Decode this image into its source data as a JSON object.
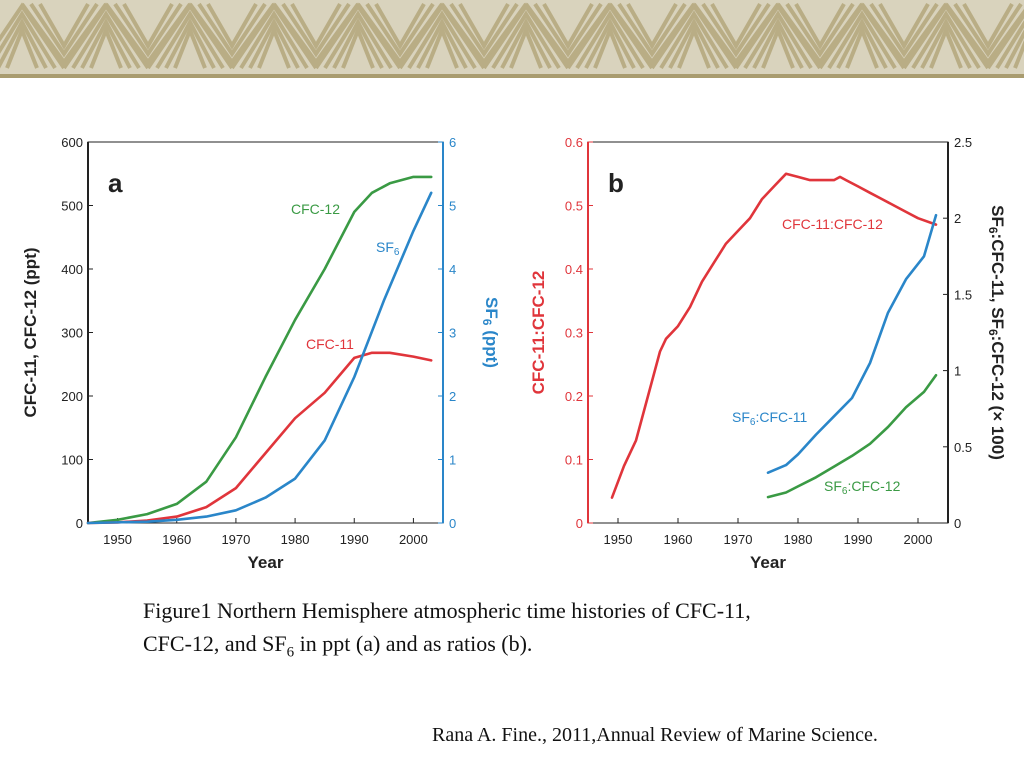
{
  "banner": {
    "pattern_icon": "triangle-meander-icon",
    "colors": {
      "background": "#d9d3bd",
      "line": "#b9ad85",
      "bottom_line": "#a99c6f"
    }
  },
  "colors": {
    "cfc11": "#e0353b",
    "cfc12": "#3a9a44",
    "sf6": "#2a86c9",
    "axis": "#222222"
  },
  "caption": {
    "line1": "Figure1 Northern Hemisphere atmospheric time histories of CFC-11,",
    "line2_a": "CFC-12, and SF",
    "line2_sub": "6",
    "line2_b": " in ppt (a) and as ratios (b)."
  },
  "citation": "Rana A. Fine., 2011,Annual Review of Marine Science.",
  "chart_data": [
    {
      "type": "line",
      "panel_label": "a",
      "xlabel": "Year",
      "ylabel_left": "CFC-11, CFC-12 (ppt)",
      "ylabel_right": {
        "main": "SF",
        "sub": "6",
        "rest": " (ppt)"
      },
      "xlim": [
        1945,
        2005
      ],
      "ylim_left": [
        0,
        600
      ],
      "ylim_right": [
        0,
        6
      ],
      "x_ticks": [
        "1950",
        "1960",
        "1970",
        "1980",
        "1990",
        "2000"
      ],
      "y_left_ticks": [
        "0",
        "100",
        "200",
        "300",
        "400",
        "500",
        "600"
      ],
      "y_right_ticks": [
        "0",
        "1",
        "2",
        "3",
        "4",
        "5",
        "6"
      ],
      "series": [
        {
          "name": "CFC-12",
          "axis": "left",
          "color": "#3a9a44",
          "x": [
            1945,
            1950,
            1955,
            1960,
            1965,
            1970,
            1975,
            1980,
            1985,
            1990,
            1993,
            1996,
            2000,
            2003
          ],
          "y": [
            0,
            5,
            14,
            30,
            65,
            135,
            230,
            320,
            400,
            490,
            520,
            535,
            545,
            545
          ]
        },
        {
          "name": "CFC-11",
          "axis": "left",
          "color": "#e0353b",
          "x": [
            1945,
            1950,
            1955,
            1960,
            1965,
            1970,
            1975,
            1980,
            1985,
            1990,
            1993,
            1996,
            2000,
            2003
          ],
          "y": [
            0,
            1,
            4,
            10,
            25,
            55,
            110,
            165,
            205,
            260,
            268,
            268,
            262,
            256
          ]
        },
        {
          "name": {
            "main": "SF",
            "sub": "6"
          },
          "axis": "right",
          "color": "#2a86c9",
          "x": [
            1945,
            1955,
            1960,
            1965,
            1970,
            1975,
            1980,
            1985,
            1990,
            1995,
            2000,
            2003
          ],
          "y": [
            0,
            0.02,
            0.05,
            0.1,
            0.2,
            0.4,
            0.7,
            1.3,
            2.3,
            3.5,
            4.6,
            5.2
          ]
        }
      ],
      "series_labels": [
        "CFC-12",
        "CFC-11",
        {
          "main": "SF",
          "sub": "6"
        }
      ]
    },
    {
      "type": "line",
      "panel_label": "b",
      "xlabel": "Year",
      "ylabel_left": "CFC-11:CFC-12",
      "ylabel_right": {
        "p1": "SF",
        "s1": "6",
        "p2": ":CFC-11, SF",
        "s2": "6",
        "p3": ":CFC-12 (× 100)"
      },
      "xlim": [
        1945,
        2005
      ],
      "ylim_left": [
        0,
        0.6
      ],
      "ylim_right": [
        0,
        2.5
      ],
      "x_ticks": [
        "1950",
        "1960",
        "1970",
        "1980",
        "1990",
        "2000"
      ],
      "y_left_ticks": [
        "0",
        "0.1",
        "0.2",
        "0.3",
        "0.4",
        "0.5",
        "0.6"
      ],
      "y_right_ticks": [
        "0",
        "0.5",
        "1",
        "1.5",
        "2",
        "2.5"
      ],
      "series": [
        {
          "name": "CFC-11:CFC-12",
          "axis": "left",
          "color": "#e0353b",
          "x": [
            1949,
            1951,
            1953,
            1955,
            1957,
            1958,
            1960,
            1962,
            1964,
            1966,
            1968,
            1970,
            1972,
            1974,
            1976,
            1978,
            1980,
            1982,
            1984,
            1986,
            1987,
            1988,
            1990,
            1992,
            1994,
            1996,
            1998,
            2000,
            2003
          ],
          "y": [
            0.04,
            0.09,
            0.13,
            0.2,
            0.27,
            0.29,
            0.31,
            0.34,
            0.38,
            0.41,
            0.44,
            0.46,
            0.48,
            0.51,
            0.53,
            0.55,
            0.545,
            0.54,
            0.54,
            0.54,
            0.545,
            0.54,
            0.53,
            0.52,
            0.51,
            0.5,
            0.49,
            0.48,
            0.47
          ]
        },
        {
          "name": {
            "main": "SF",
            "sub": "6",
            "rest": ":CFC-11"
          },
          "axis": "right",
          "color": "#2a86c9",
          "x": [
            1975,
            1978,
            1980,
            1983,
            1986,
            1989,
            1992,
            1995,
            1998,
            2001,
            2003
          ],
          "y": [
            0.33,
            0.38,
            0.45,
            0.58,
            0.7,
            0.82,
            1.05,
            1.38,
            1.6,
            1.75,
            2.02
          ]
        },
        {
          "name": {
            "main": "SF",
            "sub": "6",
            "rest": ":CFC-12"
          },
          "axis": "right",
          "color": "#3a9a44",
          "x": [
            1975,
            1978,
            1980,
            1983,
            1986,
            1989,
            1992,
            1995,
            1998,
            2001,
            2003
          ],
          "y": [
            0.17,
            0.2,
            0.24,
            0.3,
            0.37,
            0.44,
            0.52,
            0.63,
            0.76,
            0.86,
            0.97
          ]
        }
      ],
      "series_labels": [
        "CFC-11:CFC-12",
        {
          "main": "SF",
          "sub": "6",
          "rest": ":CFC-11"
        },
        {
          "main": "SF",
          "sub": "6",
          "rest": ":CFC-12"
        }
      ]
    }
  ]
}
